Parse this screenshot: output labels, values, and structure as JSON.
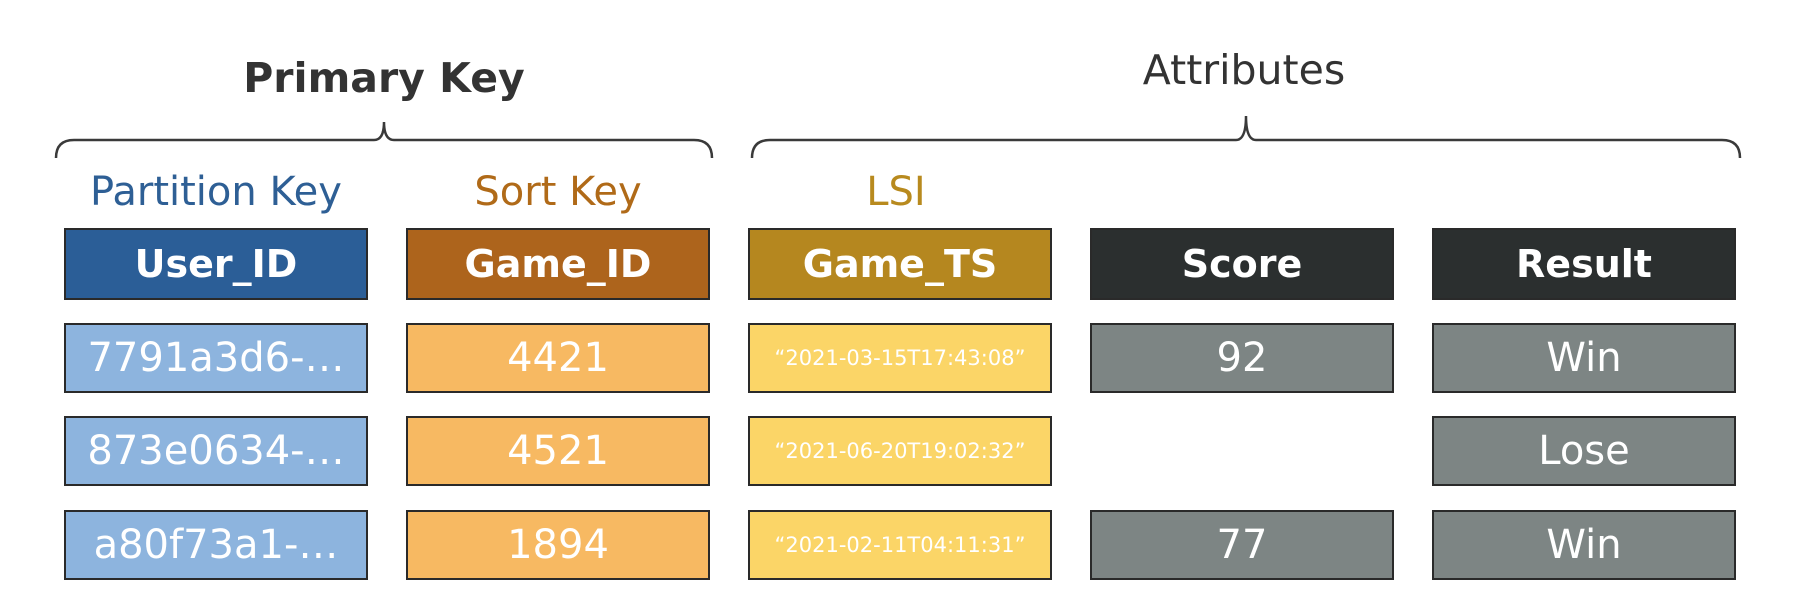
{
  "groups": {
    "primary_key": {
      "label": "Primary Key"
    },
    "attributes": {
      "label": "Attributes"
    }
  },
  "column_labels": {
    "partition_key": {
      "label": "Partition Key",
      "color": "#2e5f95"
    },
    "sort_key": {
      "label": "Sort Key",
      "color": "#b06a18"
    },
    "lsi": {
      "label": "LSI",
      "color": "#b88a1e"
    }
  },
  "columns": [
    {
      "key": "user_id",
      "header": "User_ID",
      "header_color": "#2b5e97",
      "cell_color": "#8db4de"
    },
    {
      "key": "game_id",
      "header": "Game_ID",
      "header_color": "#ad641c",
      "cell_color": "#f7b962"
    },
    {
      "key": "game_ts",
      "header": "Game_TS",
      "header_color": "#b5871f",
      "cell_color": "#fbd567"
    },
    {
      "key": "score",
      "header": "Score",
      "header_color": "#2b2f2f",
      "cell_color": "#7d8584"
    },
    {
      "key": "result",
      "header": "Result",
      "header_color": "#2b2f2f",
      "cell_color": "#7d8584"
    }
  ],
  "rows": [
    {
      "user_id": "7791a3d6-…",
      "game_id": "4421",
      "game_ts": "“2021-03-15T17:43:08”",
      "score": "92",
      "result": "Win"
    },
    {
      "user_id": "873e0634-…",
      "game_id": "4521",
      "game_ts": "“2021-06-20T19:02:32”",
      "score": null,
      "result": "Lose"
    },
    {
      "user_id": "a80f73a1-…",
      "game_id": "1894",
      "game_ts": "“2021-02-11T04:11:31”",
      "score": "77",
      "result": "Win"
    }
  ]
}
